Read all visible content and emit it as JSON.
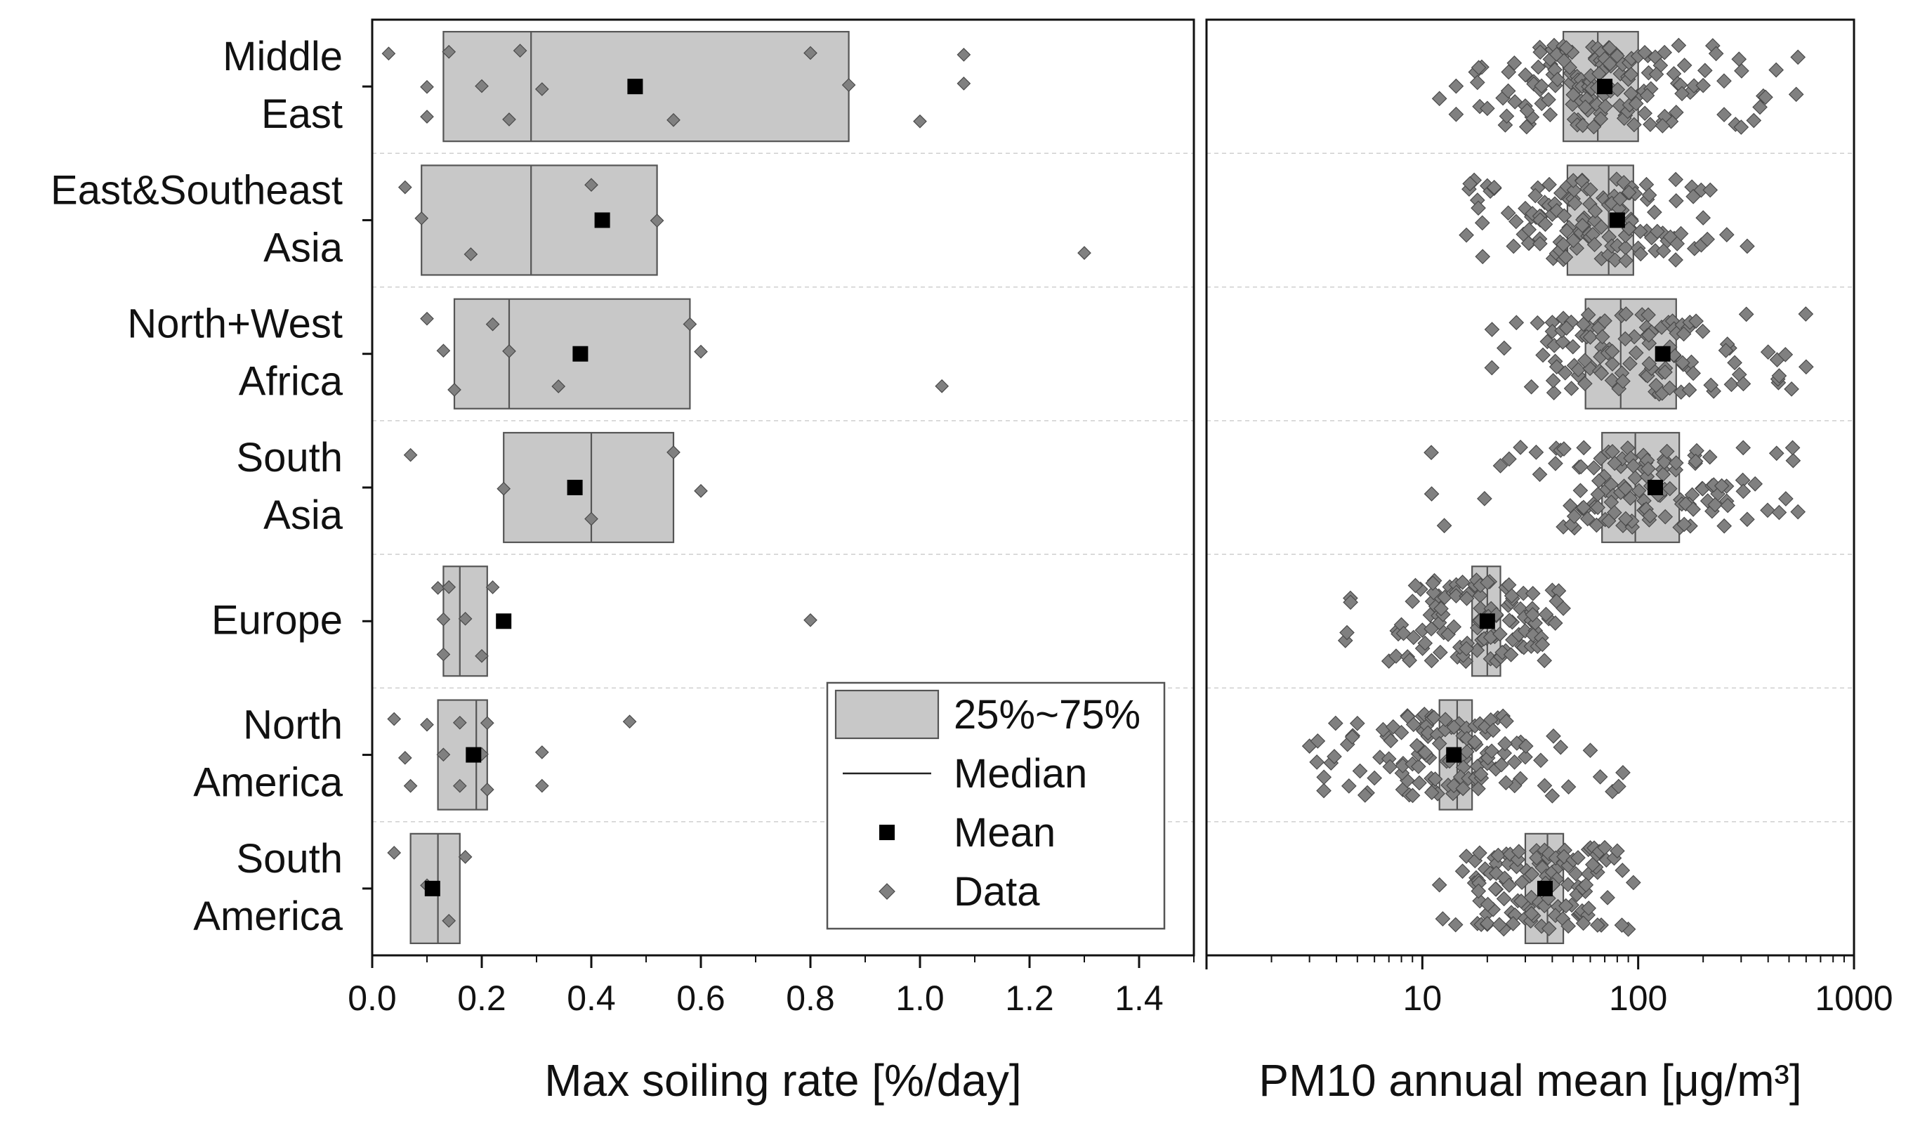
{
  "chart_data": [
    {
      "type": "box",
      "orientation": "horizontal",
      "xlabel": "Max soiling rate [%/day]",
      "xlim": [
        0.0,
        1.5
      ],
      "xticks": [
        "0.0",
        "0.2",
        "0.4",
        "0.6",
        "0.8",
        "1.0",
        "1.2",
        "1.4"
      ],
      "grid": "horizontal-dashed",
      "categories": [
        "Middle\nEast",
        "East&Southeast\nAsia",
        "North+West\nAfrica",
        "South\nAsia",
        "Europe",
        "North\nAmerica",
        "South\nAmerica"
      ],
      "series": [
        {
          "category": "Middle East",
          "q1": 0.13,
          "median": 0.29,
          "q3": 0.87,
          "mean": 0.48,
          "data": [
            0.03,
            0.1,
            0.1,
            0.14,
            0.2,
            0.25,
            0.27,
            0.31,
            0.55,
            0.8,
            0.87,
            1.0,
            1.08,
            1.08
          ]
        },
        {
          "category": "East&Southeast Asia",
          "q1": 0.09,
          "median": 0.29,
          "q3": 0.52,
          "mean": 0.42,
          "data": [
            0.06,
            0.09,
            0.18,
            0.4,
            0.52,
            1.3
          ]
        },
        {
          "category": "North+West Africa",
          "q1": 0.15,
          "median": 0.25,
          "q3": 0.58,
          "mean": 0.38,
          "data": [
            0.1,
            0.13,
            0.15,
            0.22,
            0.25,
            0.34,
            0.58,
            0.6,
            1.04
          ]
        },
        {
          "category": "South Asia",
          "q1": 0.24,
          "median": 0.4,
          "q3": 0.55,
          "mean": 0.37,
          "data": [
            0.07,
            0.24,
            0.4,
            0.55,
            0.6
          ]
        },
        {
          "category": "Europe",
          "q1": 0.13,
          "median": 0.16,
          "q3": 0.21,
          "mean": 0.24,
          "data": [
            0.12,
            0.13,
            0.13,
            0.14,
            0.17,
            0.2,
            0.22,
            0.8
          ]
        },
        {
          "category": "North America",
          "q1": 0.12,
          "median": 0.19,
          "q3": 0.21,
          "mean": 0.185,
          "data": [
            0.04,
            0.06,
            0.07,
            0.1,
            0.13,
            0.16,
            0.16,
            0.2,
            0.21,
            0.21,
            0.31,
            0.31,
            0.47
          ]
        },
        {
          "category": "South America",
          "q1": 0.07,
          "median": 0.12,
          "q3": 0.16,
          "mean": 0.11,
          "data": [
            0.04,
            0.1,
            0.14,
            0.17
          ]
        }
      ]
    },
    {
      "type": "box",
      "orientation": "horizontal",
      "xlabel": "PM10 annual mean [μg/m³]",
      "xscale": "log",
      "xlim": [
        1,
        1000
      ],
      "xticks": [
        "1",
        "10",
        "100",
        "1000"
      ],
      "grid": "horizontal-dashed",
      "series": [
        {
          "category": "Middle East",
          "q1": 45,
          "median": 65,
          "q3": 100,
          "mean": 70,
          "data": [
            12,
            18,
            20,
            25,
            30,
            35,
            40,
            45,
            50,
            55,
            60,
            65,
            70,
            80,
            90,
            100,
            120,
            150,
            200,
            250,
            300,
            380,
            550
          ]
        },
        {
          "category": "East&Southeast Asia",
          "q1": 47,
          "median": 73,
          "q3": 95,
          "mean": 80,
          "data": [
            16,
            18,
            20,
            25,
            30,
            35,
            40,
            45,
            50,
            55,
            60,
            70,
            80,
            90,
            100,
            120,
            150,
            180,
            200,
            320
          ]
        },
        {
          "category": "North+West Africa",
          "q1": 57,
          "median": 83,
          "q3": 150,
          "mean": 130,
          "data": [
            21,
            32,
            40,
            45,
            55,
            60,
            70,
            85,
            110,
            120,
            140,
            160,
            180,
            280,
            400,
            450,
            600
          ]
        },
        {
          "category": "South Asia",
          "q1": 68,
          "median": 97,
          "q3": 155,
          "mean": 120,
          "data": [
            11,
            23,
            35,
            45,
            55,
            65,
            75,
            85,
            95,
            110,
            130,
            150,
            180,
            220,
            260,
            320,
            450,
            550
          ]
        },
        {
          "category": "Europe",
          "q1": 17,
          "median": 20,
          "q3": 23,
          "mean": 20,
          "data": [
            4.4,
            7,
            8,
            9,
            10,
            11,
            12,
            14,
            16,
            18,
            20,
            22,
            25,
            28,
            32,
            36,
            40,
            45
          ]
        },
        {
          "category": "North America",
          "q1": 12,
          "median": 14.5,
          "q3": 17,
          "mean": 14,
          "data": [
            3,
            3.5,
            4.5,
            5,
            6,
            7,
            8,
            9,
            10,
            11,
            12,
            14,
            16,
            18,
            20,
            24,
            30,
            40,
            60,
            85
          ]
        },
        {
          "category": "South America",
          "q1": 30,
          "median": 38,
          "q3": 45,
          "mean": 37,
          "data": [
            12,
            16,
            18,
            20,
            22,
            25,
            28,
            32,
            36,
            40,
            45,
            50,
            55,
            60,
            70,
            80,
            95
          ]
        }
      ]
    }
  ],
  "legend": {
    "placement": "inside-bottom-right of left panel",
    "items": [
      {
        "key": "box",
        "label": "25%~75%"
      },
      {
        "key": "median",
        "label": "Median"
      },
      {
        "key": "mean",
        "label": "Mean"
      },
      {
        "key": "data",
        "label": "Data"
      }
    ]
  },
  "colors": {
    "box_fill": "#c8c8c8",
    "box_edge": "#555555",
    "marker": "#808080",
    "marker_edge": "#4a4a4a",
    "mean": "#000000",
    "grid": "#cfcfcf"
  }
}
